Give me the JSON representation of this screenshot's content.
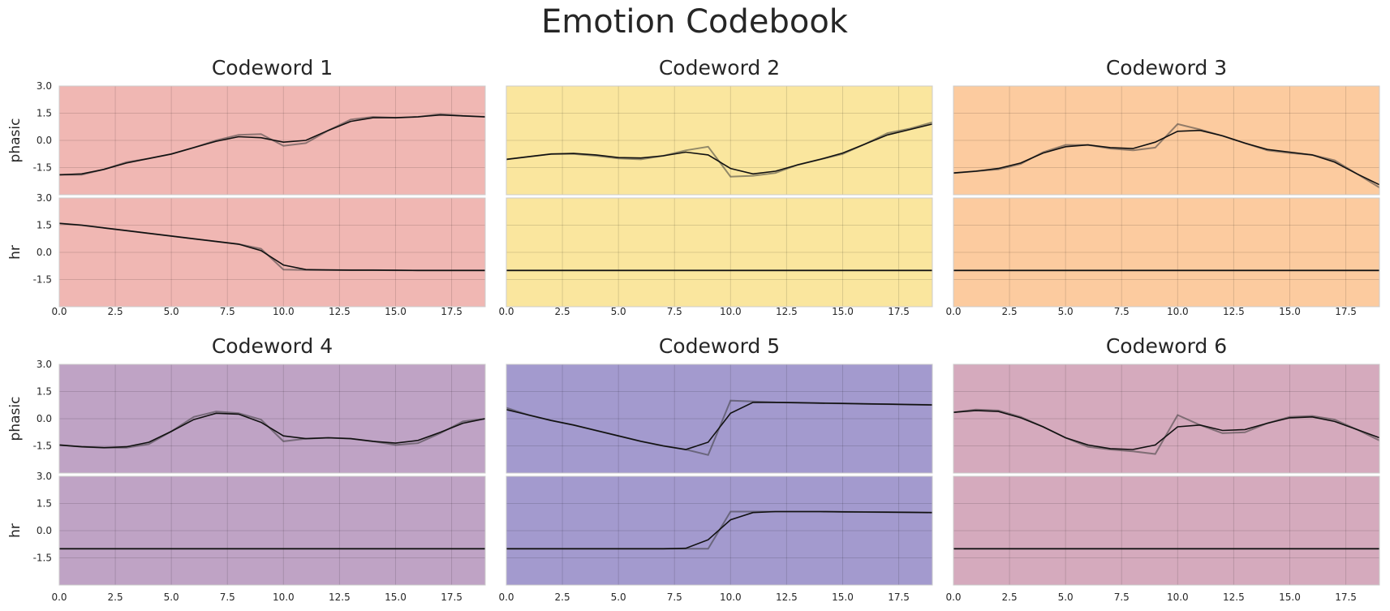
{
  "title": "Emotion Codebook",
  "chart_data": {
    "type": "line",
    "x_ticks": [
      0.0,
      2.5,
      5.0,
      7.5,
      10.0,
      12.5,
      15.0,
      17.5
    ],
    "x_tick_labels": [
      "0.0",
      "2.5",
      "5.0",
      "7.5",
      "10.0",
      "12.5",
      "15.0",
      "17.5"
    ],
    "xlim": [
      0,
      19
    ],
    "y_ticks": [
      3.0,
      1.5,
      0.0,
      -1.5
    ],
    "y_tick_labels": [
      "3.0",
      "1.5",
      "0.0",
      "-1.5"
    ],
    "ylim": [
      -3,
      3
    ],
    "row_labels": [
      "phasic",
      "hr"
    ],
    "x": [
      0,
      1,
      2,
      3,
      4,
      5,
      6,
      7,
      8,
      9,
      10,
      11,
      12,
      13,
      14,
      15,
      16,
      17,
      18,
      19
    ],
    "panels": [
      {
        "title": "Codeword 1",
        "background": "#f0b7b3",
        "phasic": {
          "smooth": [
            -1.9,
            -1.85,
            -1.6,
            -1.25,
            -1.0,
            -0.75,
            -0.4,
            -0.05,
            0.2,
            0.15,
            -0.1,
            0.0,
            0.55,
            1.05,
            1.25,
            1.25,
            1.3,
            1.4,
            1.35,
            1.3
          ],
          "raw": [
            -1.9,
            -1.9,
            -1.6,
            -1.2,
            -1.0,
            -0.75,
            -0.4,
            0.0,
            0.3,
            0.35,
            -0.3,
            -0.15,
            0.55,
            1.15,
            1.3,
            1.25,
            1.3,
            1.45,
            1.35,
            1.3
          ]
        },
        "hr": {
          "smooth": [
            1.6,
            1.5,
            1.35,
            1.2,
            1.05,
            0.9,
            0.75,
            0.6,
            0.45,
            0.1,
            -0.7,
            -0.95,
            -0.97,
            -0.98,
            -0.98,
            -0.99,
            -1.0,
            -1.0,
            -1.0,
            -1.0
          ],
          "raw": [
            1.6,
            1.5,
            1.35,
            1.2,
            1.05,
            0.9,
            0.75,
            0.6,
            0.45,
            0.2,
            -0.95,
            -0.97,
            -0.97,
            -0.98,
            -0.98,
            -0.99,
            -1.0,
            -1.0,
            -1.0,
            -1.0
          ]
        }
      },
      {
        "title": "Codeword 2",
        "background": "#fae69e",
        "phasic": {
          "smooth": [
            -1.05,
            -0.9,
            -0.75,
            -0.72,
            -0.8,
            -0.95,
            -0.97,
            -0.85,
            -0.65,
            -0.8,
            -1.55,
            -1.85,
            -1.7,
            -1.35,
            -1.05,
            -0.7,
            -0.2,
            0.3,
            0.6,
            0.9
          ],
          "raw": [
            -1.05,
            -0.9,
            -0.75,
            -0.75,
            -0.85,
            -1.0,
            -1.05,
            -0.85,
            -0.55,
            -0.35,
            -2.0,
            -1.95,
            -1.8,
            -1.35,
            -1.05,
            -0.75,
            -0.2,
            0.4,
            0.65,
            1.0
          ]
        },
        "hr": {
          "smooth": [
            -1.0,
            -1.0,
            -1.0,
            -1.0,
            -1.0,
            -1.0,
            -1.0,
            -1.0,
            -1.0,
            -1.0,
            -1.0,
            -1.0,
            -1.0,
            -1.0,
            -1.0,
            -1.0,
            -1.0,
            -1.0,
            -1.0,
            -1.0
          ],
          "raw": [
            -1.0,
            -1.0,
            -1.0,
            -1.0,
            -1.0,
            -1.0,
            -1.0,
            -1.0,
            -1.0,
            -1.0,
            -1.0,
            -1.0,
            -1.0,
            -1.0,
            -1.0,
            -1.0,
            -1.0,
            -1.0,
            -1.0,
            -1.0
          ]
        }
      },
      {
        "title": "Codeword 3",
        "background": "#fccb9f",
        "phasic": {
          "smooth": [
            -1.8,
            -1.7,
            -1.55,
            -1.25,
            -0.7,
            -0.35,
            -0.25,
            -0.4,
            -0.45,
            -0.1,
            0.5,
            0.55,
            0.25,
            -0.15,
            -0.5,
            -0.65,
            -0.8,
            -1.2,
            -1.85,
            -2.45
          ],
          "raw": [
            -1.8,
            -1.7,
            -1.6,
            -1.3,
            -0.65,
            -0.25,
            -0.25,
            -0.45,
            -0.55,
            -0.4,
            0.9,
            0.6,
            0.25,
            -0.15,
            -0.55,
            -0.7,
            -0.8,
            -1.1,
            -1.85,
            -2.6
          ]
        },
        "hr": {
          "smooth": [
            -1.0,
            -1.0,
            -1.0,
            -1.0,
            -1.0,
            -1.0,
            -1.0,
            -1.0,
            -1.0,
            -1.0,
            -1.0,
            -1.0,
            -1.0,
            -1.0,
            -1.0,
            -1.0,
            -1.0,
            -1.0,
            -1.0,
            -1.0
          ],
          "raw": [
            -1.0,
            -1.0,
            -1.0,
            -1.0,
            -1.0,
            -1.0,
            -1.0,
            -1.0,
            -1.0,
            -1.0,
            -1.0,
            -1.0,
            -1.0,
            -1.0,
            -1.0,
            -1.0,
            -1.0,
            -1.0,
            -1.0,
            -1.0
          ]
        }
      },
      {
        "title": "Codeword 4",
        "background": "#bfa3c5",
        "phasic": {
          "smooth": [
            -1.45,
            -1.55,
            -1.6,
            -1.55,
            -1.3,
            -0.7,
            -0.05,
            0.3,
            0.25,
            -0.2,
            -0.95,
            -1.1,
            -1.05,
            -1.1,
            -1.25,
            -1.35,
            -1.2,
            -0.75,
            -0.25,
            0.0
          ],
          "raw": [
            -1.45,
            -1.55,
            -1.6,
            -1.6,
            -1.4,
            -0.7,
            0.1,
            0.4,
            0.3,
            -0.05,
            -1.25,
            -1.1,
            -1.05,
            -1.1,
            -1.25,
            -1.45,
            -1.35,
            -0.8,
            -0.15,
            0.0
          ]
        },
        "hr": {
          "smooth": [
            -1.0,
            -1.0,
            -1.0,
            -1.0,
            -1.0,
            -1.0,
            -1.0,
            -1.0,
            -1.0,
            -1.0,
            -1.0,
            -1.0,
            -1.0,
            -1.0,
            -1.0,
            -1.0,
            -1.0,
            -1.0,
            -1.0,
            -1.0
          ],
          "raw": [
            -1.0,
            -1.0,
            -1.0,
            -1.0,
            -1.0,
            -1.0,
            -1.0,
            -1.0,
            -1.0,
            -1.0,
            -1.0,
            -1.0,
            -1.0,
            -1.0,
            -1.0,
            -1.0,
            -1.0,
            -1.0,
            -1.0,
            -1.0
          ]
        }
      },
      {
        "title": "Codeword 5",
        "background": "#a39ace",
        "phasic": {
          "smooth": [
            0.5,
            0.2,
            -0.1,
            -0.35,
            -0.65,
            -0.95,
            -1.25,
            -1.5,
            -1.7,
            -1.3,
            0.3,
            0.9,
            0.9,
            0.88,
            0.86,
            0.84,
            0.82,
            0.8,
            0.78,
            0.76
          ],
          "raw": [
            0.6,
            0.2,
            -0.1,
            -0.35,
            -0.65,
            -0.95,
            -1.25,
            -1.5,
            -1.7,
            -2.0,
            1.0,
            0.95,
            0.9,
            0.88,
            0.86,
            0.84,
            0.82,
            0.8,
            0.78,
            0.76
          ]
        },
        "hr": {
          "smooth": [
            -1.0,
            -1.0,
            -1.0,
            -1.0,
            -1.0,
            -1.0,
            -1.0,
            -1.0,
            -0.97,
            -0.5,
            0.6,
            1.0,
            1.05,
            1.05,
            1.05,
            1.04,
            1.03,
            1.02,
            1.01,
            1.0
          ],
          "raw": [
            -1.0,
            -1.0,
            -1.0,
            -1.0,
            -1.0,
            -1.0,
            -1.0,
            -1.0,
            -1.0,
            -1.0,
            1.05,
            1.05,
            1.05,
            1.05,
            1.05,
            1.04,
            1.03,
            1.02,
            1.01,
            1.0
          ]
        }
      },
      {
        "title": "Codeword 6",
        "background": "#d5aabd",
        "phasic": {
          "smooth": [
            0.35,
            0.45,
            0.4,
            0.05,
            -0.45,
            -1.05,
            -1.45,
            -1.65,
            -1.7,
            -1.45,
            -0.45,
            -0.35,
            -0.65,
            -0.6,
            -0.25,
            0.05,
            0.1,
            -0.15,
            -0.6,
            -1.05
          ],
          "raw": [
            0.35,
            0.5,
            0.45,
            0.1,
            -0.45,
            -1.05,
            -1.55,
            -1.7,
            -1.8,
            -1.95,
            0.2,
            -0.35,
            -0.8,
            -0.75,
            -0.25,
            0.1,
            0.15,
            -0.05,
            -0.6,
            -1.2
          ]
        },
        "hr": {
          "smooth": [
            -1.0,
            -1.0,
            -1.0,
            -1.0,
            -1.0,
            -1.0,
            -1.0,
            -1.0,
            -1.0,
            -1.0,
            -1.0,
            -1.0,
            -1.0,
            -1.0,
            -1.0,
            -1.0,
            -1.0,
            -1.0,
            -1.0,
            -1.0
          ],
          "raw": [
            -1.0,
            -1.0,
            -1.0,
            -1.0,
            -1.0,
            -1.0,
            -1.0,
            -1.0,
            -1.0,
            -1.0,
            -1.0,
            -1.0,
            -1.0,
            -1.0,
            -1.0,
            -1.0,
            -1.0,
            -1.0,
            -1.0,
            -1.0
          ]
        }
      }
    ]
  }
}
